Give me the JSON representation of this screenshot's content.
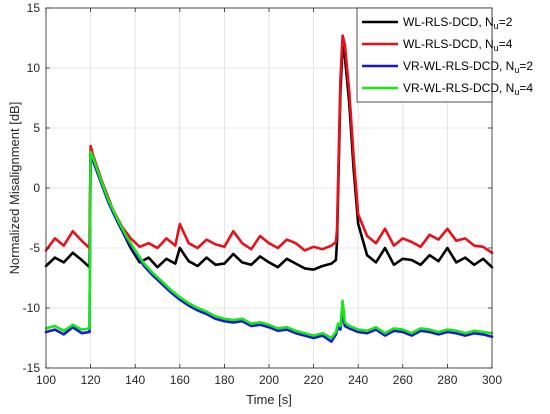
{
  "chart_data": {
    "type": "line",
    "xlabel": "Time [s]",
    "ylabel": "Normalized Misalignment [dB]",
    "xlim": [
      100,
      300
    ],
    "ylim": [
      -15,
      15
    ],
    "xticks": [
      100,
      120,
      140,
      160,
      180,
      200,
      220,
      240,
      260,
      280,
      300
    ],
    "yticks": [
      -15,
      -10,
      -5,
      0,
      5,
      10,
      15
    ],
    "grid": true,
    "legend_position": "top-right",
    "series": [
      {
        "name": "WL-RLS-DCD, N_u=2",
        "legend_main": "WL-RLS-DCD, N",
        "legend_sub": "u",
        "legend_tail": "=2",
        "color": "#000000",
        "x": [
          100,
          104,
          108,
          112,
          116,
          119.5,
          120,
          121,
          125,
          130,
          134,
          138,
          142,
          146,
          150,
          154,
          158,
          160,
          164,
          168,
          172,
          176,
          180,
          184,
          188,
          192,
          196,
          200,
          204,
          208,
          212,
          216,
          220,
          224,
          228,
          230,
          230.5,
          232,
          233,
          234,
          236,
          238,
          240,
          244,
          248,
          252,
          256,
          260,
          264,
          268,
          272,
          276,
          280,
          284,
          288,
          292,
          296,
          300
        ],
        "y": [
          -6.5,
          -5.8,
          -6.2,
          -5.4,
          -6.0,
          -6.6,
          3.0,
          2.5,
          0.5,
          -2.0,
          -3.5,
          -5.0,
          -6.2,
          -5.8,
          -6.6,
          -5.9,
          -6.3,
          -5.0,
          -6.1,
          -6.5,
          -5.8,
          -6.4,
          -6.3,
          -5.5,
          -6.2,
          -6.4,
          -5.7,
          -6.2,
          -6.6,
          -5.9,
          -6.3,
          -6.7,
          -6.8,
          -6.5,
          -6.3,
          -6.0,
          -4.5,
          8.0,
          11.8,
          11.0,
          7.0,
          1.5,
          -3.0,
          -5.6,
          -6.2,
          -5.0,
          -6.4,
          -5.9,
          -6.0,
          -6.4,
          -5.6,
          -6.1,
          -5.0,
          -6.2,
          -5.8,
          -6.4,
          -5.9,
          -6.6
        ]
      },
      {
        "name": "WL-RLS-DCD, N_u=4",
        "legend_main": "WL-RLS-DCD, N",
        "legend_sub": "u",
        "legend_tail": "=4",
        "color": "#e8101a",
        "x": [
          100,
          104,
          108,
          112,
          116,
          119.5,
          120,
          121,
          125,
          130,
          134,
          138,
          142,
          146,
          150,
          154,
          158,
          160,
          164,
          168,
          172,
          176,
          180,
          184,
          188,
          192,
          196,
          200,
          204,
          208,
          212,
          216,
          220,
          224,
          228,
          230,
          230.5,
          232,
          233,
          234,
          236,
          238,
          240,
          244,
          248,
          252,
          256,
          260,
          264,
          268,
          272,
          276,
          280,
          284,
          288,
          292,
          296,
          300
        ],
        "y": [
          -5.2,
          -4.2,
          -4.8,
          -3.6,
          -4.4,
          -5.0,
          3.5,
          2.8,
          0.6,
          -1.8,
          -3.2,
          -4.2,
          -4.9,
          -4.6,
          -5.0,
          -4.2,
          -4.8,
          -3.0,
          -4.6,
          -5.0,
          -4.3,
          -4.7,
          -4.9,
          -3.6,
          -4.6,
          -5.1,
          -4.0,
          -4.6,
          -5.0,
          -4.3,
          -4.6,
          -5.2,
          -4.9,
          -5.1,
          -4.8,
          -4.5,
          -3.5,
          9.0,
          12.7,
          12.0,
          8.0,
          2.5,
          -2.2,
          -4.0,
          -4.6,
          -3.4,
          -4.8,
          -4.2,
          -4.5,
          -4.9,
          -3.9,
          -4.3,
          -3.4,
          -4.4,
          -4.2,
          -4.8,
          -4.9,
          -5.4
        ]
      },
      {
        "name": "VR-WL-RLS-DCD, N_u=2",
        "legend_main": "VR-WL-RLS-DCD, N",
        "legend_sub": "u",
        "legend_tail": "=2",
        "color": "#1616d8",
        "x": [
          100,
          104,
          108,
          112,
          116,
          119.5,
          120,
          121,
          124,
          128,
          132,
          136,
          140,
          144,
          148,
          152,
          156,
          160,
          164,
          168,
          172,
          176,
          180,
          184,
          188,
          192,
          196,
          200,
          204,
          208,
          212,
          216,
          220,
          224,
          228,
          230,
          231,
          232,
          233,
          234,
          236,
          240,
          244,
          248,
          252,
          256,
          260,
          264,
          268,
          272,
          276,
          280,
          284,
          288,
          292,
          296,
          300
        ],
        "y": [
          -12.0,
          -11.8,
          -12.2,
          -11.6,
          -12.1,
          -12.0,
          2.8,
          2.3,
          0.8,
          -1.2,
          -2.8,
          -4.2,
          -5.4,
          -6.5,
          -7.3,
          -8.0,
          -8.7,
          -9.3,
          -9.8,
          -10.2,
          -10.5,
          -10.9,
          -11.1,
          -11.2,
          -11.1,
          -11.5,
          -11.4,
          -11.6,
          -11.9,
          -11.8,
          -12.1,
          -12.3,
          -12.5,
          -12.3,
          -12.8,
          -12.2,
          -11.6,
          -11.8,
          -10.3,
          -11.5,
          -11.7,
          -12.0,
          -12.1,
          -11.8,
          -12.3,
          -11.9,
          -12.0,
          -12.3,
          -11.9,
          -12.0,
          -12.2,
          -12.0,
          -12.1,
          -12.3,
          -12.1,
          -12.2,
          -12.4
        ]
      },
      {
        "name": "VR-WL-RLS-DCD, N_u=4",
        "legend_main": "VR-WL-RLS-DCD, N",
        "legend_sub": "u",
        "legend_tail": "=4",
        "color": "#16e816",
        "x": [
          100,
          104,
          108,
          112,
          116,
          119.5,
          120,
          121,
          124,
          128,
          132,
          136,
          140,
          144,
          148,
          152,
          156,
          160,
          164,
          168,
          172,
          176,
          180,
          184,
          188,
          192,
          196,
          200,
          204,
          208,
          212,
          216,
          220,
          224,
          228,
          230,
          231,
          232,
          233,
          234,
          236,
          240,
          244,
          248,
          252,
          256,
          260,
          264,
          268,
          272,
          276,
          280,
          284,
          288,
          292,
          296,
          300
        ],
        "y": [
          -11.7,
          -11.5,
          -11.9,
          -11.4,
          -11.8,
          -11.7,
          3.0,
          2.6,
          1.0,
          -1.0,
          -2.6,
          -4.0,
          -5.2,
          -6.3,
          -7.1,
          -7.8,
          -8.5,
          -9.1,
          -9.6,
          -10.0,
          -10.3,
          -10.7,
          -10.9,
          -11.0,
          -10.9,
          -11.3,
          -11.2,
          -11.4,
          -11.7,
          -11.6,
          -11.9,
          -12.1,
          -12.3,
          -12.1,
          -12.5,
          -12.0,
          -11.3,
          -11.5,
          -9.4,
          -11.2,
          -11.5,
          -11.8,
          -11.9,
          -11.6,
          -12.1,
          -11.7,
          -11.8,
          -12.1,
          -11.7,
          -11.8,
          -12.0,
          -11.8,
          -11.9,
          -12.1,
          -11.9,
          -12.0,
          -12.1
        ]
      }
    ]
  }
}
